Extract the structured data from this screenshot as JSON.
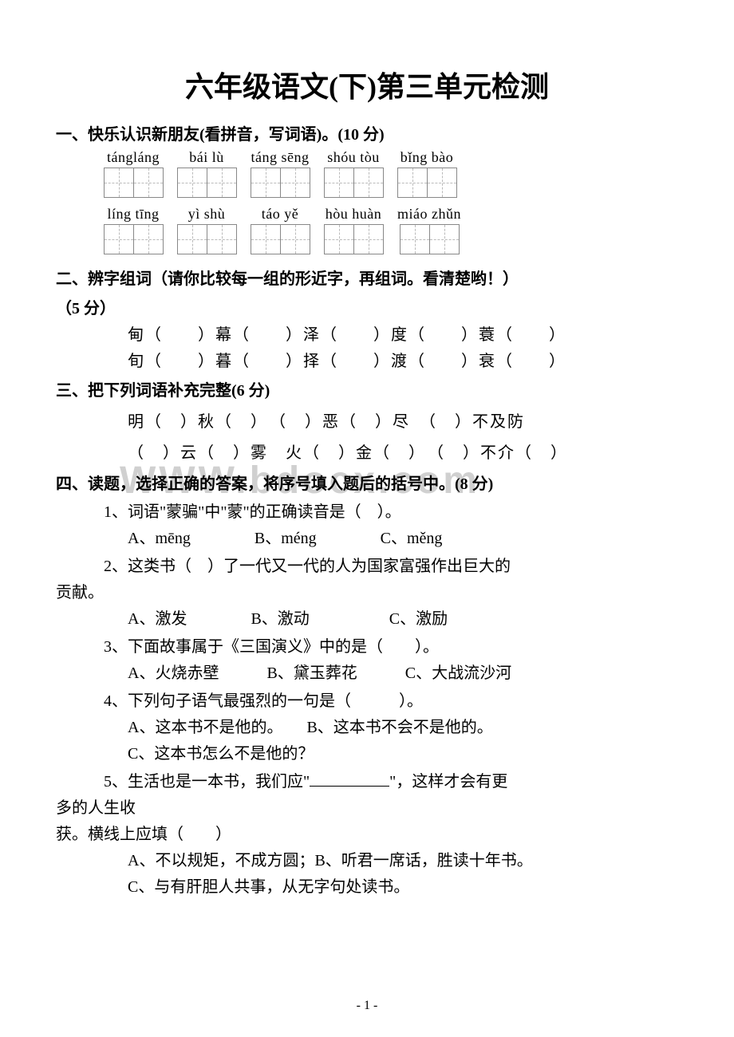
{
  "title": "六年级语文(下)第三单元检测",
  "watermark": "WWW.bdocx.com",
  "page_num": "- 1 -",
  "section1": {
    "header": "一、快乐认识新朋友(看拼音，写词语)。(10 分)",
    "row1": [
      {
        "pinyin": "tángláng",
        "boxes": 2
      },
      {
        "pinyin": "bái lù",
        "boxes": 2
      },
      {
        "pinyin": "táng sēng",
        "boxes": 2
      },
      {
        "pinyin": "shóu tòu",
        "boxes": 2
      },
      {
        "pinyin": "bǐng bào",
        "boxes": 2
      }
    ],
    "row2": [
      {
        "pinyin": "líng tīng",
        "boxes": 2
      },
      {
        "pinyin": "yì shù",
        "boxes": 2
      },
      {
        "pinyin": "táo yě",
        "boxes": 2
      },
      {
        "pinyin": "hòu huàn",
        "boxes": 2
      },
      {
        "pinyin": "miáo zhǔn",
        "boxes": 2
      }
    ]
  },
  "section2": {
    "header": "二、辨字组词（请你比较每一组的形近字，再组词。看清楚哟！）",
    "header2": "（5 分）",
    "row1": "甸（　　）幕（　　）泽（　　）度（　　）蓑（　　）",
    "row2": "旬（　　）暮（　　）择（　　）渡（　　）衰（　　）"
  },
  "section3": {
    "header": "三、把下列词语补充完整(6 分)",
    "row1": "明（　）秋（　）　（　）恶（　）尽　（　）不及防",
    "row2": "（　）云（　）雾　火（　）金（　）　（　）不介（　）"
  },
  "section4": {
    "header": "四、读题，选择正确的答案，将序号填入题后的括号中。(8 分)",
    "q1": {
      "text": "1、词语\"蒙骗\"中\"蒙\"的正确读音是（　）。",
      "options": "A、mēng　　　　B、méng　　　　C、měng"
    },
    "q2": {
      "text": "2、这类书（　）了一代又一代的人为国家富强作出巨大的",
      "text2": "贡献。",
      "options": "A、激发　　　　B、激动　　　　　C、激励"
    },
    "q3": {
      "text": "3、下面故事属于《三国演义》中的是（　　）。",
      "options": "A、火烧赤壁　　　B、黛玉葬花　　　C、大战流沙河"
    },
    "q4": {
      "text": "4、下列句子语气最强烈的一句是（　　　）。",
      "opt_a": "A、这本书不是他的。　　B、这本书不会不是他的。",
      "opt_c": "C、这本书怎么不是他的？"
    },
    "q5": {
      "text_before": "5、生活也是一本书，我们应\"",
      "text_after": "\"，这样才会有更",
      "text2": "多的人生收",
      "text3": "获。横线上应填（　　）",
      "opt_a": "A、不以规矩，不成方圆；B、听君一席话，胜读十年书。",
      "opt_c": "C、与有肝胆人共事，从无字句处读书。"
    }
  }
}
